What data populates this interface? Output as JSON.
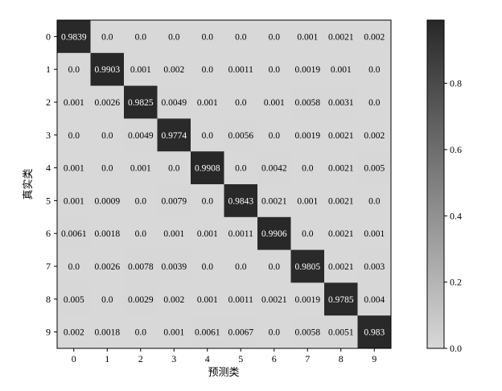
{
  "chart_data": {
    "type": "heatmap",
    "xlabel": "预测类",
    "ylabel": "真实类",
    "x_categories": [
      "0",
      "1",
      "2",
      "3",
      "4",
      "5",
      "6",
      "7",
      "8",
      "9"
    ],
    "y_categories": [
      "0",
      "1",
      "2",
      "3",
      "4",
      "5",
      "6",
      "7",
      "8",
      "9"
    ],
    "values": [
      [
        "0.9839",
        "0.0",
        "0.0",
        "0.0",
        "0.0",
        "0.0",
        "0.0",
        "0.001",
        "0.0021",
        "0.002"
      ],
      [
        "0.0",
        "0.9903",
        "0.001",
        "0.002",
        "0.0",
        "0.0011",
        "0.0",
        "0.0019",
        "0.001",
        "0.0"
      ],
      [
        "0.001",
        "0.0026",
        "0.9825",
        "0.0049",
        "0.001",
        "0.0",
        "0.001",
        "0.0058",
        "0.0031",
        "0.0"
      ],
      [
        "0.0",
        "0.0",
        "0.0049",
        "0.9774",
        "0.0",
        "0.0056",
        "0.0",
        "0.0019",
        "0.0021",
        "0.002"
      ],
      [
        "0.001",
        "0.0",
        "0.001",
        "0.0",
        "0.9908",
        "0.0",
        "0.0042",
        "0.0",
        "0.0021",
        "0.005"
      ],
      [
        "0.001",
        "0.0009",
        "0.0",
        "0.0079",
        "0.0",
        "0.9843",
        "0.0021",
        "0.001",
        "0.0021",
        "0.0"
      ],
      [
        "0.0061",
        "0.0018",
        "0.0",
        "0.001",
        "0.001",
        "0.0011",
        "0.9906",
        "0.0",
        "0.0021",
        "0.001"
      ],
      [
        "0.0",
        "0.0026",
        "0.0078",
        "0.0039",
        "0.0",
        "0.0",
        "0.0",
        "0.9805",
        "0.0021",
        "0.003"
      ],
      [
        "0.005",
        "0.0",
        "0.0029",
        "0.002",
        "0.001",
        "0.0011",
        "0.0021",
        "0.0019",
        "0.9785",
        "0.004"
      ],
      [
        "0.002",
        "0.0018",
        "0.0",
        "0.001",
        "0.0061",
        "0.0067",
        "0.0",
        "0.0058",
        "0.0051",
        "0.983"
      ]
    ],
    "colorbar": {
      "min": 0,
      "max": 0.9908,
      "ticks": [
        "0.0",
        "0.2",
        "0.4",
        "0.6",
        "0.8"
      ]
    },
    "colormap": {
      "low": "#d8d8d8",
      "high": "#282828"
    }
  }
}
